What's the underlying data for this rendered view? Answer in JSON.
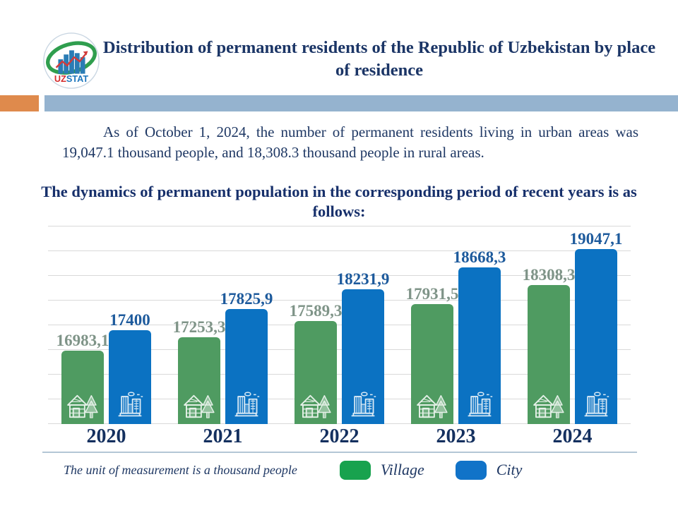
{
  "header": {
    "logo": {
      "uz": "UZ",
      "stat": "STAT",
      "name": "uzstat-logo"
    },
    "title": "Distribution of permanent residents of the Republic of Uzbekistan by place of residence"
  },
  "accent_colors": {
    "orange_block": "#df8a4c",
    "blue_gray_band": "#95b3cf",
    "title_navy": "#1b3566"
  },
  "intro_paragraph": "As of October 1, 2024, the number of permanent residents living in urban areas was 19,047.1 thousand people, and 18,308.3 thousand people in rural areas.",
  "chart_title": "The dynamics of permanent population in the corresponding period of recent years is as follows:",
  "chart_data": {
    "type": "bar",
    "categories": [
      "2020",
      "2021",
      "2022",
      "2023",
      "2024"
    ],
    "series": [
      {
        "name": "Village",
        "color": "#4f9b61",
        "label_color": "#7f9488",
        "values": [
          16983.1,
          17253.3,
          17589.3,
          17931.5,
          18308.3
        ],
        "labels": [
          "16983,1",
          "17253,3",
          "17589,3",
          "17931,5",
          "18308,3"
        ]
      },
      {
        "name": "City",
        "color": "#0b72c2",
        "label_color": "#1d5a9c",
        "values": [
          17400,
          17825.9,
          18231.9,
          18668.3,
          19047.1
        ],
        "labels": [
          "17400",
          "17825,9",
          "18231,9",
          "18668,3",
          "19047,1"
        ]
      }
    ],
    "ylim": [
      15500,
      19500
    ],
    "gridline_step": 500,
    "grid": true,
    "xlabel": "",
    "ylabel": "",
    "legend_position": "bottom"
  },
  "footer": {
    "note": "The unit of measurement is a thousand people",
    "legend": [
      {
        "label": "Village",
        "color": "#18a24e"
      },
      {
        "label": "City",
        "color": "#1173c8"
      }
    ]
  }
}
